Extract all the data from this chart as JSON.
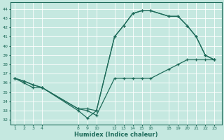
{
  "xlabel": "Humidex (Indice chaleur)",
  "bg_color": "#c5e8e0",
  "line_color": "#1e6b5a",
  "grid_color": "#ffffff",
  "xticks": [
    1,
    2,
    3,
    4,
    8,
    9,
    10,
    12,
    13,
    14,
    15,
    16,
    18,
    19,
    20,
    21,
    22,
    23
  ],
  "yticks": [
    32,
    33,
    34,
    35,
    36,
    37,
    38,
    39,
    40,
    41,
    42,
    43,
    44
  ],
  "xlim": [
    0.5,
    23.8
  ],
  "ylim": [
    31.5,
    44.7
  ],
  "lines": [
    {
      "x": [
        1,
        2,
        3,
        4,
        8,
        9,
        10,
        12,
        13,
        14,
        15,
        16,
        18,
        19,
        20,
        21,
        22,
        23
      ],
      "y": [
        36.5,
        36.0,
        35.5,
        35.5,
        33.0,
        32.2,
        33.0,
        41.0,
        42.2,
        43.5,
        43.8,
        43.8,
        43.2,
        43.2,
        42.2,
        41.0,
        39.0,
        38.5
      ]
    },
    {
      "x": [
        1,
        2,
        3,
        4,
        8,
        9,
        10,
        12,
        13,
        14,
        15,
        16,
        18,
        19,
        20,
        21,
        22,
        23
      ],
      "y": [
        36.5,
        36.2,
        35.8,
        35.5,
        33.2,
        33.0,
        32.5,
        36.5,
        36.5,
        36.5,
        36.5,
        36.5,
        37.5,
        38.0,
        38.5,
        38.5,
        38.5,
        38.5
      ]
    },
    {
      "x": [
        1,
        2,
        3,
        4,
        8,
        9,
        10,
        12,
        13,
        14,
        15,
        16,
        18,
        19,
        20,
        21,
        22,
        23
      ],
      "y": [
        36.5,
        36.2,
        35.8,
        35.5,
        33.2,
        33.2,
        33.0,
        41.0,
        42.2,
        43.5,
        43.8,
        43.8,
        43.2,
        43.2,
        42.2,
        41.0,
        39.0,
        38.5
      ]
    }
  ]
}
